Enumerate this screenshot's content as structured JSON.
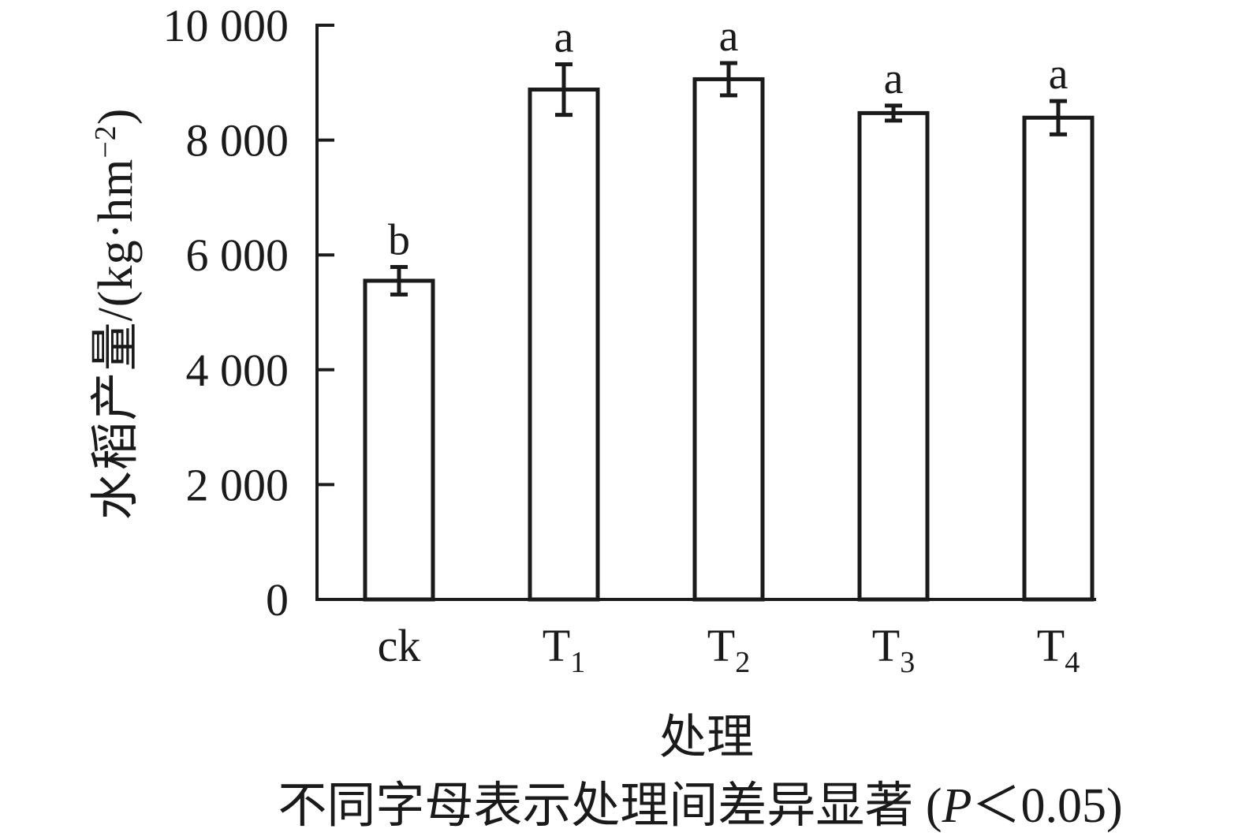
{
  "ylabel": {
    "pre": "水稻产量/(kg·hm",
    "sup": "−2",
    "post": ")"
  },
  "xlabel": "处理",
  "caption": {
    "prefix": "不同字母表示处理间差异显著 (",
    "italic": "P",
    "suffix": "＜0.05)"
  },
  "colors": {
    "ink": "#1a1a1a",
    "background": "#ffffff",
    "bar_fill": "#ffffff"
  },
  "chart_data": {
    "type": "bar",
    "title": "",
    "xlabel": "处理",
    "ylabel": "水稻产量/(kg·hm−2)",
    "categories": [
      "ck",
      "T1",
      "T2",
      "T3",
      "T4"
    ],
    "category_labels": [
      {
        "base": "ck",
        "sub": ""
      },
      {
        "base": "T",
        "sub": "1"
      },
      {
        "base": "T",
        "sub": "2"
      },
      {
        "base": "T",
        "sub": "3"
      },
      {
        "base": "T",
        "sub": "4"
      }
    ],
    "values": [
      5550,
      8880,
      9060,
      8470,
      8390
    ],
    "errors": [
      240,
      440,
      280,
      130,
      290
    ],
    "sig_letters": [
      "b",
      "a",
      "a",
      "a",
      "a"
    ],
    "ylim": [
      0,
      10000
    ],
    "yticks": [
      0,
      2000,
      4000,
      6000,
      8000,
      10000
    ],
    "ytick_labels": [
      "0",
      "2 000",
      "4 000",
      "6 000",
      "8 000",
      "10 000"
    ],
    "grid": false,
    "legend": "none",
    "bar_fill": "#ffffff",
    "bar_stroke": "#1a1a1a",
    "annotation": "不同字母表示处理间差异显著 (P＜0.05)"
  }
}
